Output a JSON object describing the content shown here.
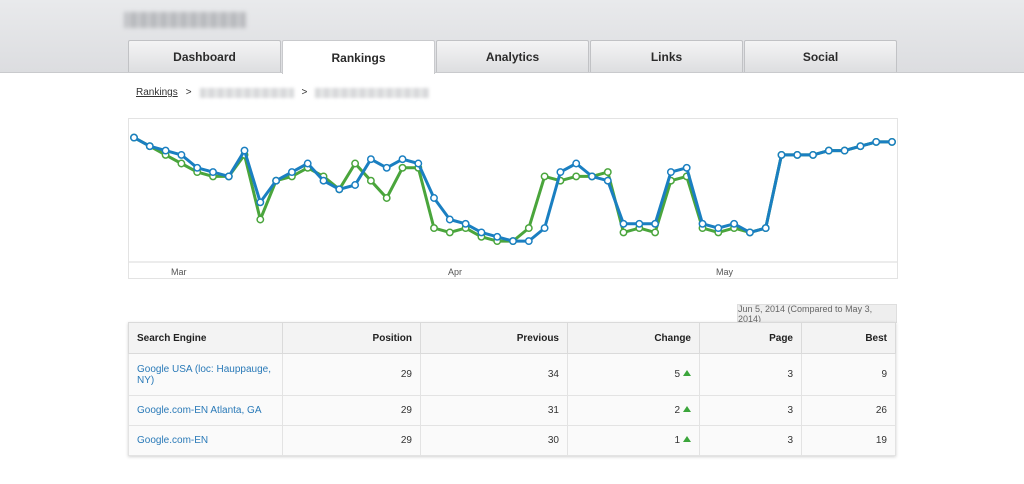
{
  "tabs": [
    {
      "label": "Dashboard",
      "active": false
    },
    {
      "label": "Rankings",
      "active": true
    },
    {
      "label": "Analytics",
      "active": false
    },
    {
      "label": "Links",
      "active": false
    },
    {
      "label": "Social",
      "active": false
    }
  ],
  "breadcrumb": {
    "root": "Rankings",
    "sep": ">"
  },
  "colors": {
    "blue_series": "#1a7fc1",
    "green_series": "#4aa53c",
    "change_up": "#3aa53a",
    "link": "#2a7ab8"
  },
  "chart_data": {
    "type": "line",
    "x_labels": [
      "Mar",
      "Apr",
      "May"
    ],
    "y_inverted": true,
    "ylim": [
      1,
      30
    ],
    "series": [
      {
        "values": [
          3,
          5,
          6,
          7,
          10,
          11,
          12,
          6,
          18,
          13,
          11,
          9,
          13,
          15,
          14,
          8,
          10,
          8,
          9,
          17,
          22,
          23,
          25,
          26,
          27,
          27,
          24,
          11,
          9,
          12,
          13,
          23,
          23,
          23,
          11,
          10,
          23,
          24,
          23,
          25,
          24,
          7,
          7,
          7,
          6,
          6,
          5,
          4,
          4
        ]
      },
      {
        "values": [
          3,
          5,
          7,
          9,
          11,
          12,
          12,
          7,
          22,
          13,
          12,
          10,
          12,
          15,
          9,
          13,
          17,
          10,
          10,
          24,
          25,
          24,
          26,
          27,
          27,
          24,
          12,
          13,
          12,
          12,
          11,
          25,
          24,
          25,
          13,
          12,
          24,
          25,
          24,
          25,
          24,
          7,
          7,
          7,
          6,
          6,
          5,
          4,
          4
        ]
      }
    ]
  },
  "date_note": "Jun 5, 2014 (Compared to May 3, 2014)",
  "table": {
    "headers": [
      "Search Engine",
      "Position",
      "Previous",
      "Change",
      "Page",
      "Best"
    ],
    "rows": [
      {
        "engine": "Google USA (loc: Hauppauge, NY)",
        "position": "29",
        "previous": "34",
        "change": "5",
        "page": "3",
        "best": "9"
      },
      {
        "engine": "Google.com-EN Atlanta, GA",
        "position": "29",
        "previous": "31",
        "change": "2",
        "page": "3",
        "best": "26"
      },
      {
        "engine": "Google.com-EN",
        "position": "29",
        "previous": "30",
        "change": "1",
        "page": "3",
        "best": "19"
      }
    ]
  }
}
